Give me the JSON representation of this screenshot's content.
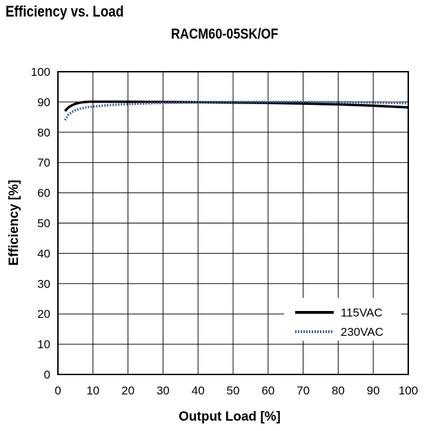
{
  "chart_data": {
    "type": "line",
    "title": "Efficiency vs. Load",
    "subtitle": "RACM60-05SK/OF",
    "xlabel": "Output Load [%]",
    "ylabel": "Efficiency [%]",
    "xlim": [
      0,
      100
    ],
    "ylim": [
      0,
      100
    ],
    "xticks": [
      0,
      10,
      20,
      30,
      40,
      50,
      60,
      70,
      80,
      90,
      100
    ],
    "yticks": [
      0,
      10,
      20,
      30,
      40,
      50,
      60,
      70,
      80,
      90,
      100
    ],
    "grid": true,
    "legend_position": "bottom-right",
    "series": [
      {
        "name": "115VAC",
        "color": "#000000",
        "style": "solid",
        "x": [
          2,
          3,
          4,
          5,
          6,
          7,
          8,
          9,
          10,
          15,
          20,
          30,
          40,
          50,
          60,
          70,
          80,
          90,
          100
        ],
        "y": [
          87.0,
          88.2,
          88.9,
          89.4,
          89.7,
          89.9,
          90.0,
          90.1,
          90.1,
          90.1,
          90.1,
          90.0,
          89.9,
          89.8,
          89.7,
          89.5,
          89.2,
          88.8,
          88.2
        ]
      },
      {
        "name": "230VAC",
        "color": "#3a5f9e",
        "style": "dotted",
        "x": [
          2,
          3,
          4,
          5,
          6,
          8,
          10,
          15,
          20,
          25,
          30,
          40,
          50,
          60,
          70,
          80,
          90,
          100
        ],
        "y": [
          84.0,
          85.8,
          86.7,
          87.3,
          87.7,
          88.2,
          88.5,
          89.0,
          89.3,
          89.5,
          89.7,
          89.9,
          90.0,
          90.0,
          90.0,
          89.9,
          89.8,
          89.6
        ]
      }
    ]
  }
}
